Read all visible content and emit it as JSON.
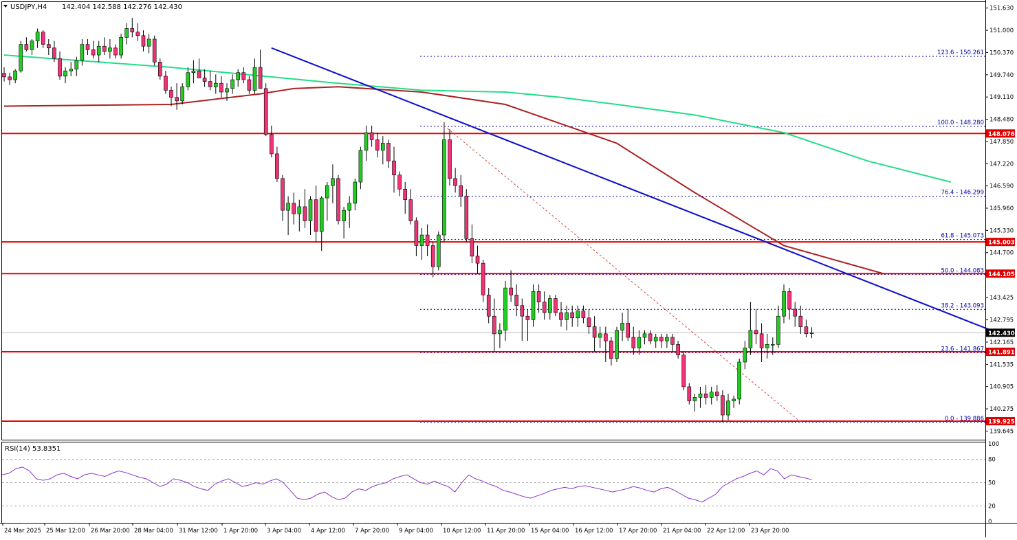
{
  "header": {
    "symbol": "USDJPY,H4",
    "ohlc": "142.404 142.588 142.276 142.430",
    "dropdown_icon": "triangle-down-icon"
  },
  "rsi_panel": {
    "label": "RSI(14) 53.8351"
  },
  "colors": {
    "bull_candle": "#22cc22",
    "bear_candle": "#ee3377",
    "wick": "#000000",
    "sma_fast": "#22dd88",
    "sma_slow": "#aa2222",
    "trendline": "#1111cc",
    "fib_lines": "#0000aa",
    "horizontal_levels": "#ee0000",
    "rsi_line": "#8833cc",
    "price_tag_bg": "#dd0000",
    "current_price_tag_bg": "#000000"
  },
  "chart_data": {
    "type": "candlestick",
    "symbol": "USDJPY",
    "timeframe": "H4",
    "ylim": [
      139.4,
      151.8
    ],
    "price_ticks": [
      "151.630",
      "151.000",
      "150.370",
      "149.740",
      "149.110",
      "148.480",
      "147.850",
      "147.220",
      "146.590",
      "145.960",
      "145.330",
      "144.700",
      "143.425",
      "142.795",
      "142.165",
      "141.535",
      "140.905",
      "140.275",
      "139.645"
    ],
    "x_ticks": [
      "24 Mar 2025",
      "25 Mar 12:00",
      "26 Mar 20:00",
      "28 Mar 04:00",
      "31 Mar 12:00",
      "1 Apr 20:00",
      "3 Apr 04:00",
      "4 Apr 12:00",
      "7 Apr 20:00",
      "9 Apr 04:00",
      "10 Apr 12:00",
      "11 Apr 20:00",
      "15 Apr 04:00",
      "16 Apr 12:00",
      "17 Apr 20:00",
      "21 Apr 04:00",
      "22 Apr 12:00",
      "23 Apr 20:00"
    ],
    "candles_ohlc": [
      [
        149.78,
        149.95,
        149.55,
        149.68
      ],
      [
        149.68,
        149.8,
        149.45,
        149.6
      ],
      [
        149.6,
        149.9,
        149.5,
        149.85
      ],
      [
        149.85,
        150.7,
        149.8,
        150.6
      ],
      [
        150.6,
        150.8,
        150.4,
        150.45
      ],
      [
        150.45,
        150.75,
        150.3,
        150.7
      ],
      [
        150.7,
        151.05,
        150.5,
        150.95
      ],
      [
        150.95,
        151.0,
        150.5,
        150.6
      ],
      [
        150.6,
        150.75,
        150.3,
        150.5
      ],
      [
        150.5,
        150.7,
        150.1,
        150.2
      ],
      [
        150.2,
        150.4,
        149.6,
        149.7
      ],
      [
        149.7,
        149.95,
        149.5,
        149.85
      ],
      [
        149.85,
        150.1,
        149.7,
        149.9
      ],
      [
        149.9,
        150.25,
        149.7,
        150.15
      ],
      [
        150.15,
        150.75,
        150.0,
        150.6
      ],
      [
        150.6,
        150.75,
        150.3,
        150.45
      ],
      [
        150.45,
        150.7,
        150.2,
        150.3
      ],
      [
        150.3,
        150.7,
        150.1,
        150.55
      ],
      [
        150.55,
        150.8,
        150.3,
        150.4
      ],
      [
        150.4,
        150.75,
        150.2,
        150.5
      ],
      [
        150.5,
        150.6,
        150.2,
        150.3
      ],
      [
        150.3,
        150.9,
        150.2,
        150.8
      ],
      [
        150.8,
        151.2,
        150.6,
        151.05
      ],
      [
        151.05,
        151.35,
        150.8,
        150.95
      ],
      [
        150.95,
        151.2,
        150.7,
        150.85
      ],
      [
        150.85,
        151.0,
        150.4,
        150.55
      ],
      [
        150.55,
        150.9,
        150.35,
        150.75
      ],
      [
        150.75,
        150.85,
        150.0,
        150.1
      ],
      [
        150.1,
        150.2,
        149.6,
        149.7
      ],
      [
        149.7,
        149.85,
        149.2,
        149.3
      ],
      [
        149.3,
        149.4,
        148.85,
        149.1
      ],
      [
        149.1,
        149.5,
        148.75,
        149.0
      ],
      [
        149.0,
        149.5,
        148.9,
        149.4
      ],
      [
        149.4,
        149.95,
        149.3,
        149.8
      ],
      [
        149.8,
        150.15,
        149.5,
        149.85
      ],
      [
        149.85,
        150.2,
        149.7,
        149.65
      ],
      [
        149.65,
        149.9,
        149.4,
        149.55
      ],
      [
        149.55,
        149.85,
        149.3,
        149.4
      ],
      [
        149.4,
        149.75,
        149.2,
        149.5
      ],
      [
        149.5,
        149.7,
        149.1,
        149.25
      ],
      [
        149.25,
        149.5,
        149.0,
        149.35
      ],
      [
        149.35,
        149.75,
        149.2,
        149.6
      ],
      [
        149.6,
        149.9,
        149.4,
        149.8
      ],
      [
        149.8,
        149.95,
        149.5,
        149.6
      ],
      [
        149.6,
        149.7,
        149.2,
        149.3
      ],
      [
        149.3,
        150.2,
        149.2,
        149.95
      ],
      [
        149.95,
        150.45,
        149.8,
        149.35
      ],
      [
        149.35,
        149.5,
        148.0,
        148.05
      ],
      [
        148.05,
        148.3,
        147.4,
        147.5
      ],
      [
        147.5,
        147.7,
        146.7,
        146.8
      ],
      [
        146.8,
        146.9,
        145.6,
        145.9
      ],
      [
        145.9,
        146.3,
        145.2,
        146.1
      ],
      [
        146.1,
        146.4,
        145.5,
        145.8
      ],
      [
        145.8,
        146.2,
        145.3,
        146.0
      ],
      [
        146.0,
        146.5,
        145.4,
        145.6
      ],
      [
        145.6,
        146.3,
        145.2,
        146.2
      ],
      [
        146.2,
        146.6,
        145.0,
        145.3
      ],
      [
        145.3,
        146.3,
        144.75,
        146.25
      ],
      [
        146.25,
        146.7,
        145.6,
        146.6
      ],
      [
        146.6,
        147.2,
        146.1,
        146.8
      ],
      [
        146.8,
        146.9,
        145.5,
        145.6
      ],
      [
        145.6,
        146.0,
        145.1,
        145.9
      ],
      [
        145.9,
        146.3,
        145.4,
        146.1
      ],
      [
        146.1,
        146.8,
        145.9,
        146.7
      ],
      [
        146.7,
        147.7,
        146.5,
        147.6
      ],
      [
        147.6,
        148.3,
        147.3,
        148.1
      ],
      [
        148.1,
        148.3,
        147.7,
        147.9
      ],
      [
        147.9,
        148.1,
        147.4,
        147.6
      ],
      [
        147.6,
        148.0,
        147.2,
        147.8
      ],
      [
        147.8,
        147.9,
        147.1,
        147.3
      ],
      [
        147.3,
        147.7,
        146.4,
        146.9
      ],
      [
        146.9,
        147.0,
        146.3,
        146.5
      ],
      [
        146.5,
        146.7,
        145.8,
        146.2
      ],
      [
        146.2,
        146.5,
        145.5,
        145.6
      ],
      [
        145.6,
        145.7,
        144.6,
        144.9
      ],
      [
        144.9,
        145.4,
        144.5,
        145.2
      ],
      [
        145.2,
        145.5,
        144.6,
        144.9
      ],
      [
        144.9,
        145.0,
        144.0,
        144.3
      ],
      [
        144.3,
        145.3,
        144.2,
        145.2
      ],
      [
        145.2,
        148.4,
        145.0,
        147.9
      ],
      [
        147.9,
        148.2,
        146.6,
        146.8
      ],
      [
        146.8,
        147.1,
        146.4,
        146.6
      ],
      [
        146.6,
        146.9,
        146.0,
        146.3
      ],
      [
        146.3,
        146.5,
        145.0,
        145.1
      ],
      [
        145.1,
        145.5,
        144.4,
        144.6
      ],
      [
        144.6,
        144.9,
        144.1,
        144.4
      ],
      [
        144.4,
        144.5,
        143.3,
        143.5
      ],
      [
        143.5,
        143.7,
        142.7,
        142.9
      ],
      [
        142.9,
        143.4,
        141.9,
        142.4
      ],
      [
        142.4,
        142.7,
        142.0,
        142.5
      ],
      [
        142.5,
        143.9,
        142.2,
        143.7
      ],
      [
        143.7,
        144.2,
        143.3,
        143.5
      ],
      [
        143.5,
        143.8,
        142.9,
        143.2
      ],
      [
        143.2,
        143.4,
        142.2,
        142.9
      ],
      [
        142.9,
        143.1,
        142.2,
        142.8
      ],
      [
        142.8,
        143.8,
        142.6,
        143.6
      ],
      [
        143.6,
        143.8,
        143.0,
        143.3
      ],
      [
        143.3,
        143.6,
        142.8,
        143.0
      ],
      [
        143.0,
        143.5,
        142.8,
        143.4
      ],
      [
        143.4,
        143.5,
        142.9,
        143.0
      ],
      [
        143.0,
        143.3,
        142.6,
        142.8
      ],
      [
        142.8,
        143.2,
        142.5,
        143.0
      ],
      [
        143.0,
        143.2,
        142.6,
        142.85
      ],
      [
        142.85,
        143.2,
        142.6,
        143.05
      ],
      [
        143.05,
        143.2,
        142.7,
        142.85
      ],
      [
        142.85,
        143.1,
        142.4,
        142.6
      ],
      [
        142.6,
        142.9,
        141.9,
        142.3
      ],
      [
        142.3,
        142.6,
        142.0,
        142.4
      ],
      [
        142.4,
        142.6,
        141.6,
        142.2
      ],
      [
        142.2,
        142.3,
        141.5,
        141.7
      ],
      [
        141.7,
        142.6,
        141.6,
        142.5
      ],
      [
        142.5,
        143.0,
        142.2,
        142.7
      ],
      [
        142.7,
        143.1,
        142.2,
        142.3
      ],
      [
        142.3,
        142.6,
        141.8,
        142.0
      ],
      [
        142.0,
        142.5,
        141.8,
        142.3
      ],
      [
        142.3,
        142.5,
        142.1,
        142.4
      ],
      [
        142.4,
        142.5,
        142.1,
        142.2
      ],
      [
        142.2,
        142.4,
        142.0,
        142.3
      ],
      [
        142.3,
        142.4,
        142.0,
        142.2
      ],
      [
        142.2,
        142.4,
        142.0,
        142.3
      ],
      [
        142.3,
        142.4,
        141.9,
        142.1
      ],
      [
        142.1,
        142.2,
        141.7,
        141.8
      ],
      [
        141.8,
        141.9,
        140.8,
        140.9
      ],
      [
        140.9,
        141.0,
        140.4,
        140.5
      ],
      [
        140.5,
        140.7,
        140.2,
        140.6
      ],
      [
        140.6,
        140.9,
        140.3,
        140.7
      ],
      [
        140.7,
        140.95,
        140.4,
        140.6
      ],
      [
        140.6,
        140.9,
        140.4,
        140.75
      ],
      [
        140.75,
        140.95,
        140.5,
        140.65
      ],
      [
        140.65,
        140.8,
        139.9,
        140.1
      ],
      [
        140.1,
        140.7,
        139.95,
        140.5
      ],
      [
        140.5,
        140.65,
        140.3,
        140.55
      ],
      [
        140.55,
        141.7,
        140.4,
        141.6
      ],
      [
        141.6,
        142.2,
        141.4,
        142.0
      ],
      [
        142.0,
        143.3,
        141.8,
        142.5
      ],
      [
        142.5,
        143.1,
        142.1,
        142.4
      ],
      [
        142.4,
        142.7,
        141.6,
        142.0
      ],
      [
        142.0,
        142.4,
        141.7,
        142.1
      ],
      [
        142.1,
        142.3,
        141.8,
        142.1
      ],
      [
        142.1,
        143.2,
        142.0,
        142.9
      ],
      [
        142.9,
        143.8,
        142.7,
        143.6
      ],
      [
        143.6,
        143.7,
        142.8,
        143.1
      ],
      [
        143.1,
        143.3,
        142.6,
        142.9
      ],
      [
        142.9,
        143.2,
        142.4,
        142.6
      ],
      [
        142.6,
        142.8,
        142.3,
        142.404
      ],
      [
        142.404,
        142.588,
        142.276,
        142.43
      ]
    ],
    "sma_fast_points": [
      [
        0,
        150.3
      ],
      [
        30,
        149.95
      ],
      [
        60,
        149.5
      ],
      [
        75,
        149.3
      ],
      [
        90,
        149.25
      ],
      [
        100,
        149.1
      ],
      [
        110,
        148.9
      ],
      [
        124,
        148.6
      ],
      [
        140,
        148.1
      ],
      [
        155,
        147.3
      ],
      [
        170,
        146.7
      ]
    ],
    "sma_slow_points": [
      [
        0,
        148.85
      ],
      [
        30,
        148.9
      ],
      [
        46,
        149.2
      ],
      [
        52,
        149.35
      ],
      [
        60,
        149.4
      ],
      [
        75,
        149.25
      ],
      [
        90,
        148.9
      ],
      [
        110,
        147.8
      ],
      [
        124,
        146.4
      ],
      [
        140,
        144.9
      ],
      [
        158,
        144.1
      ]
    ],
    "trendline_segment": [
      [
        48,
        150.5
      ],
      [
        178,
        142.45
      ]
    ],
    "fib_diagonal_segment": [
      [
        79,
        148.3
      ],
      [
        143,
        139.9
      ]
    ],
    "fibonacci_levels": [
      {
        "label": "123.6 - 150.261",
        "value": 150.261
      },
      {
        "label": "100.0 - 148.280",
        "value": 148.28
      },
      {
        "label": "76.4 - 146.299",
        "value": 146.299
      },
      {
        "label": "61.8 - 145.073",
        "value": 145.073
      },
      {
        "label": "50.0 - 144.083",
        "value": 144.083
      },
      {
        "label": "38.2 - 143.093",
        "value": 143.093
      },
      {
        "label": "23.6 - 141.867",
        "value": 141.867
      },
      {
        "label": "0.0 - 139.886",
        "value": 139.886
      }
    ],
    "horizontal_levels": [
      {
        "label": "148.076",
        "value": 148.076
      },
      {
        "label": "145.003",
        "value": 145.003
      },
      {
        "label": "144.105",
        "value": 144.105
      },
      {
        "label": "141.891",
        "value": 141.891
      },
      {
        "label": "139.925",
        "value": 139.925
      }
    ],
    "current_price": {
      "label": "142.430",
      "value": 142.43
    },
    "rsi": {
      "ylim": [
        0,
        100
      ],
      "ticks": [
        "100",
        "80",
        "50",
        "20",
        "0"
      ],
      "levels": [
        80,
        50,
        20
      ],
      "values": [
        60,
        62,
        68,
        70,
        65,
        55,
        53,
        55,
        60,
        62,
        58,
        55,
        60,
        62,
        60,
        58,
        62,
        65,
        63,
        60,
        57,
        55,
        50,
        45,
        48,
        55,
        53,
        50,
        45,
        42,
        40,
        48,
        52,
        55,
        50,
        45,
        47,
        50,
        48,
        52,
        55,
        50,
        40,
        30,
        28,
        30,
        35,
        38,
        32,
        28,
        30,
        38,
        42,
        40,
        45,
        48,
        50,
        55,
        58,
        60,
        55,
        50,
        48,
        52,
        48,
        45,
        38,
        50,
        60,
        55,
        52,
        48,
        45,
        40,
        38,
        35,
        32,
        30,
        33,
        36,
        40,
        42,
        44,
        42,
        45,
        46,
        44,
        42,
        40,
        38,
        40,
        42,
        45,
        43,
        40,
        38,
        42,
        44,
        40,
        35,
        30,
        28,
        25,
        30,
        35,
        45,
        50,
        55,
        58,
        62,
        65,
        60,
        68,
        65,
        55,
        60,
        58,
        56,
        53.8
      ]
    }
  }
}
